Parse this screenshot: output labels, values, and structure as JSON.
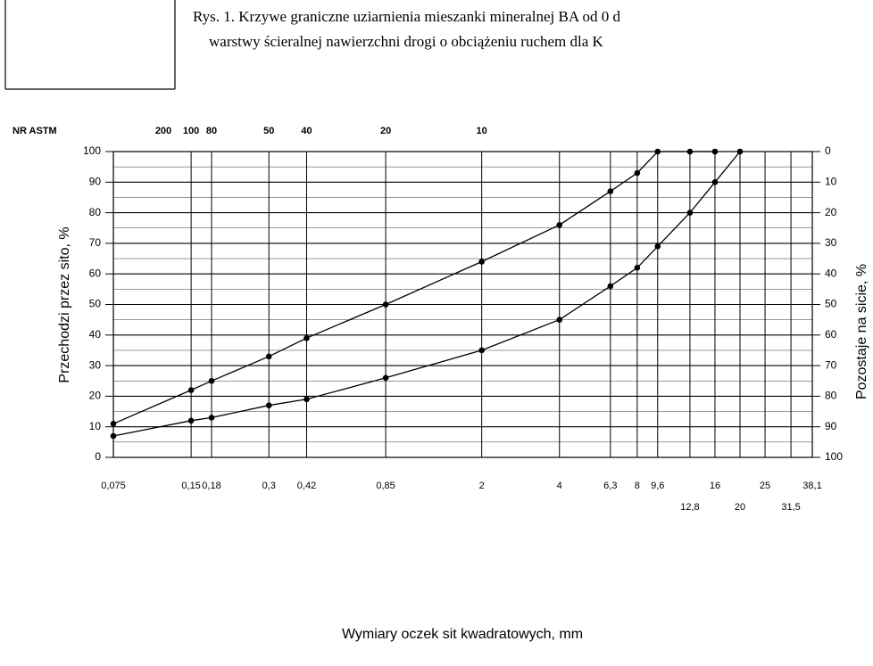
{
  "chart_data": {
    "type": "line",
    "title_lines": [
      "Rys. 1. Krzywe graniczne uziarnienia mieszanki mineralnej BA od 0 d",
      "warstwy ścieralnej nawierzchni drogi o obciążeniu ruchem  dla K"
    ],
    "x_label": "Wymiary oczek sit kwadratowych, mm",
    "y_label": "Przechodzi przez sito, %",
    "y2_label": "Pozostaje na sicie, %",
    "log_x": true,
    "grid": true,
    "xlim": [
      0.075,
      38.1
    ],
    "xticks": [
      {
        "value": 0.075,
        "label": "0,075"
      },
      {
        "value": 0.15,
        "label": "0,15"
      },
      {
        "value": 0.18,
        "label": "0,18"
      },
      {
        "value": 0.3,
        "label": "0,3"
      },
      {
        "value": 0.42,
        "label": "0,42"
      },
      {
        "value": 0.85,
        "label": "0,85"
      },
      2,
      4,
      {
        "value": 6.3,
        "label": "6,3"
      },
      8,
      {
        "value": 9.6,
        "label": "9,6"
      },
      {
        "value": 12.8,
        "label": "12,8"
      },
      16,
      20,
      25,
      {
        "value": 31.5,
        "label": "31,5"
      },
      {
        "value": 38.1,
        "label": "38,1"
      }
    ],
    "astm_label": "NR ASTM",
    "astm_ticks": [
      {
        "value": 0.075,
        "label": "200"
      },
      {
        "value": 0.15,
        "label": "100"
      },
      {
        "value": 0.18,
        "label": "80"
      },
      {
        "value": 0.3,
        "label": "50"
      },
      {
        "value": 0.42,
        "label": "40"
      },
      {
        "value": 0.85,
        "label": "20"
      },
      {
        "value": 2,
        "label": "10"
      }
    ],
    "ylim": [
      0,
      100
    ],
    "yticks": [
      0,
      10,
      20,
      30,
      40,
      50,
      60,
      70,
      80,
      90,
      100
    ],
    "yminorticks": [
      5,
      15,
      25,
      35,
      45,
      55,
      65,
      75,
      85,
      95
    ],
    "y2lim": [
      100,
      0
    ],
    "y2ticks": [
      0,
      10,
      20,
      30,
      40,
      50,
      60,
      70,
      80,
      90,
      100
    ],
    "series": [
      {
        "color": "#000000",
        "x": [
          0.075,
          0.15,
          0.18,
          0.3,
          0.42,
          0.85,
          2,
          4,
          6.3,
          8,
          9.6,
          12.8,
          16
        ],
        "values": [
          11,
          22,
          25,
          33,
          39,
          50,
          64,
          76,
          87,
          93,
          100,
          100,
          100
        ]
      },
      {
        "color": "#000000",
        "x": [
          0.075,
          0.15,
          0.18,
          0.3,
          0.42,
          0.85,
          2,
          4,
          6.3,
          8,
          9.6,
          12.8,
          16,
          20
        ],
        "values": [
          7,
          12,
          13,
          17,
          19,
          26,
          35,
          45,
          56,
          62,
          69,
          80,
          90,
          100
        ]
      }
    ]
  }
}
